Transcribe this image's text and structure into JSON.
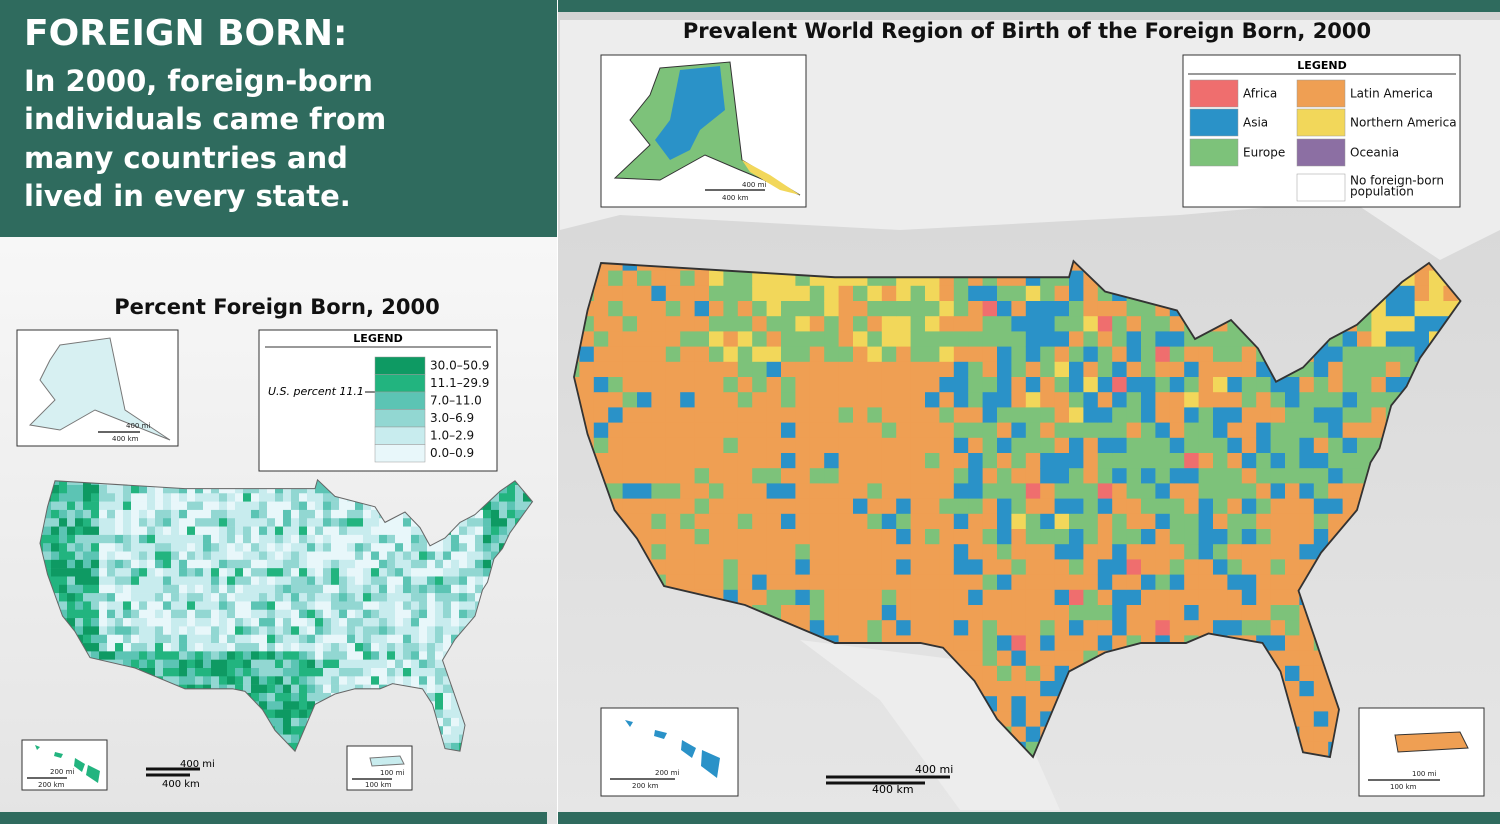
{
  "header": {
    "title": "FOREIGN BORN:",
    "subtitle_lines": [
      "In 2000, foreign-born",
      "individuals came from",
      "many countries and",
      "lived in every state."
    ]
  },
  "left_map": {
    "title": "Percent Foreign Born, 2000",
    "legend": {
      "title": "LEGEND",
      "us_percent": "U.S. percent 11.1",
      "classes": [
        {
          "label": "30.0–50.9",
          "color": "#0e9a63"
        },
        {
          "label": "11.1–29.9",
          "color": "#22b47f"
        },
        {
          "label": "7.0–11.0",
          "color": "#5cc4b4"
        },
        {
          "label": "3.0–6.9",
          "color": "#92d7d2"
        },
        {
          "label": "1.0–2.9",
          "color": "#c8ecee"
        },
        {
          "label": "0.0–0.9",
          "color": "#e8f7fa"
        }
      ]
    },
    "scales": {
      "main": [
        "400 mi",
        "400 km"
      ],
      "alaska": [
        "400 mi",
        "400 km"
      ],
      "hawaii": [
        "200 mi",
        "200 km"
      ],
      "puerto_rico": [
        "100 mi",
        "100 km"
      ]
    }
  },
  "right_map": {
    "title": "Prevalent World Region of Birth of the Foreign Born, 2000",
    "legend": {
      "title": "LEGEND",
      "entries": [
        {
          "label": "Africa",
          "color": "#ef6e6e"
        },
        {
          "label": "Asia",
          "color": "#2a92c8"
        },
        {
          "label": "Europe",
          "color": "#7dc27a"
        },
        {
          "label": "Latin America",
          "color": "#ef9f53"
        },
        {
          "label": "Northern America",
          "color": "#f2d75a"
        },
        {
          "label": "Oceania",
          "color": "#8c6fa3"
        },
        {
          "label_lines": [
            "No foreign-born",
            "population"
          ],
          "color": "#ffffff"
        }
      ]
    },
    "scales": {
      "main": [
        "400 mi",
        "400 km"
      ],
      "alaska": [
        "400 mi",
        "400 km"
      ],
      "hawaii": [
        "200 mi",
        "200 km"
      ],
      "puerto_rico": [
        "100 mi",
        "100 km"
      ]
    }
  }
}
